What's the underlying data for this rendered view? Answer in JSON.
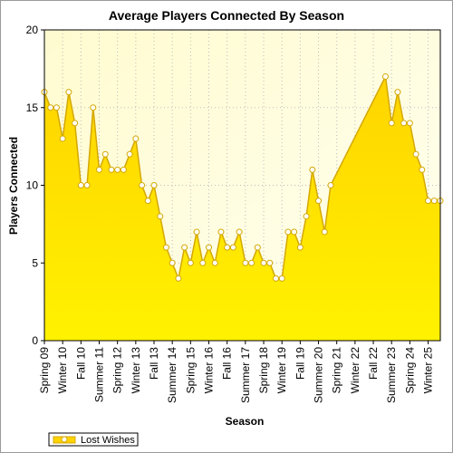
{
  "chart_data": {
    "type": "area",
    "title": "Average Players Connected By Season",
    "xlabel": "Season",
    "ylabel": "Players Connected",
    "ylim": [
      0,
      20
    ],
    "yticks": [
      0,
      5,
      10,
      15,
      20
    ],
    "grid": true,
    "legend_position": "bottom-left",
    "colors": {
      "plot_background": "#fffde0",
      "area_top": "#ffd400",
      "area_bottom": "#fff200",
      "line": "#d4a800",
      "marker_fill": "#ffffff",
      "grid": "#bdbdbd"
    },
    "x_ticks": [
      {
        "index": 0,
        "label": "Spring 09"
      },
      {
        "index": 3,
        "label": "Winter 10"
      },
      {
        "index": 6,
        "label": "Fall 10"
      },
      {
        "index": 9,
        "label": "Summer 11"
      },
      {
        "index": 12,
        "label": "Spring 12"
      },
      {
        "index": 15,
        "label": "Winter 13"
      },
      {
        "index": 18,
        "label": "Fall 13"
      },
      {
        "index": 21,
        "label": "Summer 14"
      },
      {
        "index": 24,
        "label": "Spring 15"
      },
      {
        "index": 27,
        "label": "Winter 16"
      },
      {
        "index": 30,
        "label": "Fall 16"
      },
      {
        "index": 33,
        "label": "Summer 17"
      },
      {
        "index": 36,
        "label": "Spring 18"
      },
      {
        "index": 39,
        "label": "Winter 19"
      },
      {
        "index": 42,
        "label": "Fall 19"
      },
      {
        "index": 45,
        "label": "Summer 20"
      },
      {
        "index": 48,
        "label": "Spring 21"
      },
      {
        "index": 51,
        "label": "Winter 22"
      },
      {
        "index": 54,
        "label": "Fall 22"
      },
      {
        "index": 57,
        "label": "Summer 23"
      },
      {
        "index": 60,
        "label": "Spring 24"
      },
      {
        "index": 63,
        "label": "Winter 25"
      }
    ],
    "x_count": 66,
    "series": [
      {
        "name": "Lost Wishes",
        "points": [
          [
            0,
            16
          ],
          [
            1,
            15
          ],
          [
            2,
            15
          ],
          [
            3,
            13
          ],
          [
            4,
            16
          ],
          [
            5,
            14
          ],
          [
            6,
            10
          ],
          [
            7,
            10
          ],
          [
            8,
            15
          ],
          [
            9,
            11
          ],
          [
            10,
            12
          ],
          [
            11,
            11
          ],
          [
            12,
            11
          ],
          [
            13,
            11
          ],
          [
            14,
            12
          ],
          [
            15,
            13
          ],
          [
            16,
            10
          ],
          [
            17,
            9
          ],
          [
            18,
            10
          ],
          [
            19,
            8
          ],
          [
            20,
            6
          ],
          [
            21,
            5
          ],
          [
            22,
            4
          ],
          [
            23,
            6
          ],
          [
            24,
            5
          ],
          [
            25,
            7
          ],
          [
            26,
            5
          ],
          [
            27,
            6
          ],
          [
            28,
            5
          ],
          [
            29,
            7
          ],
          [
            30,
            6
          ],
          [
            31,
            6
          ],
          [
            32,
            7
          ],
          [
            33,
            5
          ],
          [
            34,
            5
          ],
          [
            35,
            6
          ],
          [
            36,
            5
          ],
          [
            37,
            5
          ],
          [
            38,
            4
          ],
          [
            39,
            4
          ],
          [
            40,
            7
          ],
          [
            41,
            7
          ],
          [
            42,
            6
          ],
          [
            43,
            8
          ],
          [
            44,
            11
          ],
          [
            45,
            9
          ],
          [
            46,
            7
          ],
          [
            47,
            10
          ],
          [
            56,
            17
          ],
          [
            57,
            14
          ],
          [
            58,
            16
          ],
          [
            59,
            14
          ],
          [
            60,
            14
          ],
          [
            61,
            12
          ],
          [
            62,
            11
          ],
          [
            63,
            9
          ],
          [
            64,
            9
          ],
          [
            65,
            9
          ]
        ]
      }
    ]
  }
}
